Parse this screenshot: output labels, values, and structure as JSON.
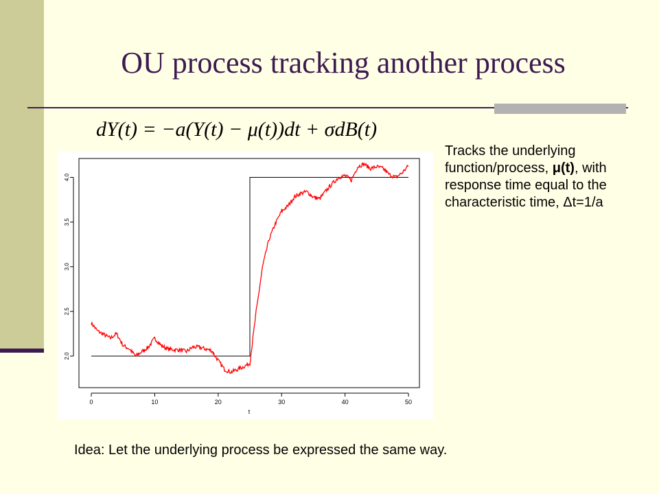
{
  "slide": {
    "title": "OU process tracking another process",
    "equation": "dY(t) = −a(Y(t) − μ(t))dt + σdB(t)",
    "side_text": {
      "line1": "Tracks the underlying function/process, ",
      "mu": "μ(t)",
      "line2": ", with response time equal to the characteristic time, ",
      "delta": "Δt=1/a"
    },
    "idea": "Idea: Let the underlying process be expressed the same way."
  },
  "colors": {
    "background": "#FFFFE6",
    "accent_bar": "#CCCC99",
    "title": "#3D1A4F",
    "process_line": "#FF0000",
    "step_line": "#000000"
  },
  "chart_data": {
    "type": "line",
    "xlabel": "t",
    "ylabel": "",
    "xlim": [
      0,
      50
    ],
    "ylim": [
      1.8,
      4.15
    ],
    "x_ticks": [
      0,
      10,
      20,
      30,
      40,
      50
    ],
    "y_ticks": [
      2.0,
      2.5,
      3.0,
      3.5,
      4.0
    ],
    "x_tick_labels": [
      "0",
      "10",
      "20",
      "30",
      "40",
      "50"
    ],
    "y_tick_labels": [
      "2.0",
      "2.5",
      "3.0",
      "3.5",
      "4.0"
    ],
    "grid": false,
    "series": [
      {
        "kind": "step",
        "color": "#000000",
        "x": [
          0,
          25,
          25,
          50
        ],
        "y": [
          2.0,
          2.0,
          4.0,
          4.0
        ]
      },
      {
        "kind": "process",
        "color": "#FF0000",
        "x": [
          0,
          1,
          2,
          3,
          4,
          5,
          6,
          7,
          8,
          9,
          10,
          11,
          12,
          13,
          14,
          15,
          16,
          17,
          18,
          19,
          20,
          21,
          22,
          23,
          24,
          25,
          26,
          27,
          28,
          29,
          30,
          31,
          32,
          33,
          34,
          35,
          36,
          37,
          38,
          39,
          40,
          41,
          42,
          43,
          44,
          45,
          46,
          47,
          48,
          49,
          50
        ],
        "y": [
          2.37,
          2.28,
          2.24,
          2.2,
          2.25,
          2.12,
          2.08,
          2.0,
          2.05,
          2.1,
          2.2,
          2.12,
          2.08,
          2.07,
          2.07,
          2.05,
          2.1,
          2.1,
          2.08,
          2.06,
          1.95,
          1.85,
          1.82,
          1.85,
          1.88,
          1.92,
          2.5,
          3.0,
          3.3,
          3.48,
          3.62,
          3.68,
          3.78,
          3.82,
          3.84,
          3.78,
          3.76,
          3.85,
          3.93,
          4.0,
          4.02,
          3.97,
          4.12,
          4.15,
          4.1,
          4.12,
          4.1,
          4.03,
          4.0,
          4.05,
          4.13
        ]
      }
    ]
  }
}
